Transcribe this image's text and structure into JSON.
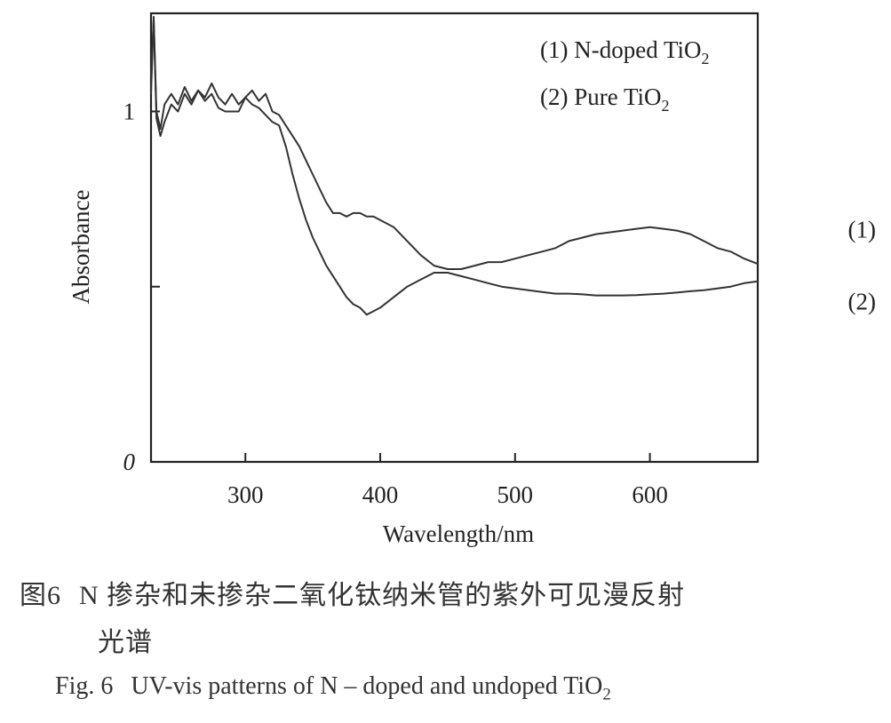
{
  "chart_data": {
    "type": "line",
    "xlabel": "Wavelength/nm",
    "ylabel": "Absorbance",
    "xlim": [
      230,
      680
    ],
    "ylim": [
      0,
      1.28
    ],
    "xticks": [
      300,
      400,
      500,
      600
    ],
    "yticks": [
      0,
      0.5,
      1
    ],
    "ytick_labels": [
      "0",
      "",
      "1"
    ],
    "legend": {
      "placement": "top-right",
      "entries": [
        {
          "prefix": "(1) N-doped TiO",
          "sub": "2"
        },
        {
          "prefix": "(2) Pure TiO",
          "sub": "2"
        }
      ]
    },
    "series": [
      {
        "name": "(1)",
        "x": [
          230,
          232,
          234,
          237,
          240,
          245,
          250,
          255,
          260,
          265,
          270,
          275,
          280,
          285,
          290,
          295,
          300,
          305,
          310,
          315,
          320,
          325,
          330,
          335,
          340,
          345,
          350,
          355,
          360,
          365,
          370,
          375,
          380,
          385,
          390,
          395,
          400,
          410,
          420,
          430,
          440,
          450,
          460,
          470,
          480,
          490,
          500,
          510,
          520,
          530,
          540,
          550,
          560,
          570,
          580,
          590,
          600,
          610,
          620,
          630,
          640,
          650,
          660,
          670,
          680
        ],
        "values": [
          1.05,
          1.27,
          1.0,
          0.95,
          1.02,
          1.05,
          1.02,
          1.07,
          1.03,
          1.06,
          1.04,
          1.08,
          1.04,
          1.02,
          1.05,
          1.02,
          1.04,
          1.06,
          1.03,
          1.05,
          1.0,
          0.99,
          0.96,
          0.93,
          0.9,
          0.86,
          0.82,
          0.78,
          0.74,
          0.71,
          0.71,
          0.7,
          0.71,
          0.71,
          0.7,
          0.7,
          0.69,
          0.67,
          0.63,
          0.59,
          0.56,
          0.55,
          0.55,
          0.56,
          0.57,
          0.57,
          0.58,
          0.59,
          0.6,
          0.61,
          0.63,
          0.64,
          0.65,
          0.655,
          0.66,
          0.665,
          0.67,
          0.665,
          0.66,
          0.65,
          0.63,
          0.61,
          0.6,
          0.58,
          0.565
        ]
      },
      {
        "name": "(2)",
        "x": [
          230,
          232,
          234,
          237,
          240,
          245,
          250,
          255,
          260,
          265,
          270,
          275,
          280,
          285,
          290,
          295,
          300,
          305,
          310,
          315,
          320,
          325,
          330,
          335,
          340,
          345,
          350,
          355,
          360,
          365,
          370,
          375,
          380,
          385,
          390,
          395,
          400,
          410,
          420,
          430,
          440,
          450,
          460,
          470,
          480,
          490,
          500,
          510,
          520,
          530,
          540,
          550,
          560,
          570,
          580,
          590,
          600,
          610,
          620,
          630,
          640,
          650,
          660,
          670,
          680
        ],
        "values": [
          1.1,
          1.26,
          0.98,
          0.93,
          0.97,
          1.02,
          1.0,
          1.05,
          1.02,
          1.06,
          1.03,
          1.05,
          1.01,
          1.0,
          1.0,
          1.0,
          1.04,
          1.02,
          1.01,
          0.99,
          0.97,
          0.96,
          0.9,
          0.82,
          0.75,
          0.69,
          0.64,
          0.6,
          0.56,
          0.53,
          0.5,
          0.47,
          0.45,
          0.44,
          0.42,
          0.43,
          0.44,
          0.47,
          0.5,
          0.52,
          0.54,
          0.54,
          0.53,
          0.52,
          0.51,
          0.5,
          0.495,
          0.49,
          0.485,
          0.48,
          0.48,
          0.478,
          0.475,
          0.475,
          0.475,
          0.476,
          0.478,
          0.48,
          0.483,
          0.487,
          0.49,
          0.495,
          0.5,
          0.51,
          0.515
        ]
      }
    ],
    "annotations": [
      {
        "text": "(1)",
        "x": 625,
        "y": 0.665
      },
      {
        "text": "(2)",
        "x": 625,
        "y": 0.46
      }
    ]
  },
  "caption": {
    "cn_label": "图6",
    "cn_line1": "N 掺杂和未掺杂二氧化钛纳米管的紫外可见漫反射",
    "cn_line2": "光谱",
    "en_prefix": "Fig. 6",
    "en_text": "UV-vis patterns of N – doped and undoped TiO",
    "en_sub": "2"
  }
}
